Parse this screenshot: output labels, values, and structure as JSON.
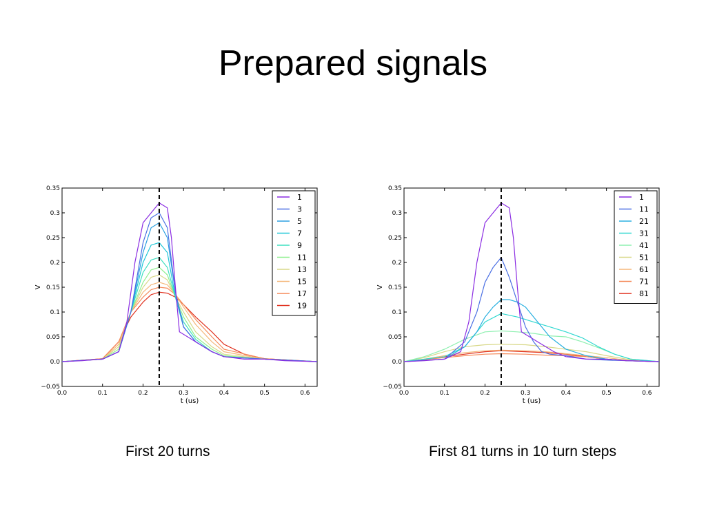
{
  "slide": {
    "title": "Prepared signals",
    "caption_left": "First 20 turns",
    "caption_right": "First 81 turns in 10 turn steps"
  },
  "chart_data": [
    {
      "type": "line",
      "title": "",
      "xlabel": "t (us)",
      "ylabel": "V",
      "xlim": [
        0,
        0.63
      ],
      "ylim": [
        -0.05,
        0.35
      ],
      "xticks": [
        0.0,
        0.1,
        0.2,
        0.3,
        0.4,
        0.5,
        0.6
      ],
      "yticks": [
        -0.05,
        0.0,
        0.05,
        0.1,
        0.15,
        0.2,
        0.25,
        0.3,
        0.35
      ],
      "legend_position": "top-right",
      "vline_x": 0.24,
      "series": [
        {
          "name": "1",
          "color": "#8a2be2",
          "x": [
            0,
            0.05,
            0.1,
            0.14,
            0.16,
            0.18,
            0.2,
            0.22,
            0.24,
            0.26,
            0.27,
            0.28,
            0.29,
            0.31,
            0.33,
            0.35,
            0.37,
            0.4,
            0.45,
            0.5,
            0.55,
            0.63
          ],
          "y": [
            0.0,
            0.002,
            0.005,
            0.02,
            0.08,
            0.2,
            0.28,
            0.3,
            0.32,
            0.31,
            0.25,
            0.15,
            0.06,
            0.05,
            0.04,
            0.03,
            0.02,
            0.01,
            0.005,
            0.005,
            0.002,
            0.0
          ]
        },
        {
          "name": "3",
          "color": "#4a6fe3",
          "x": [
            0,
            0.1,
            0.14,
            0.17,
            0.2,
            0.22,
            0.24,
            0.26,
            0.28,
            0.3,
            0.33,
            0.37,
            0.4,
            0.5,
            0.63
          ],
          "y": [
            0.0,
            0.005,
            0.02,
            0.1,
            0.24,
            0.29,
            0.3,
            0.27,
            0.14,
            0.07,
            0.04,
            0.02,
            0.01,
            0.005,
            0.0
          ]
        },
        {
          "name": "5",
          "color": "#2a9fe0",
          "x": [
            0,
            0.1,
            0.14,
            0.17,
            0.2,
            0.22,
            0.24,
            0.26,
            0.28,
            0.3,
            0.33,
            0.37,
            0.4,
            0.5,
            0.63
          ],
          "y": [
            0.0,
            0.005,
            0.02,
            0.1,
            0.22,
            0.27,
            0.28,
            0.25,
            0.14,
            0.07,
            0.04,
            0.02,
            0.01,
            0.005,
            0.0
          ]
        },
        {
          "name": "7",
          "color": "#1fc7d8",
          "x": [
            0,
            0.1,
            0.14,
            0.17,
            0.2,
            0.22,
            0.24,
            0.26,
            0.28,
            0.3,
            0.33,
            0.37,
            0.4,
            0.5,
            0.63
          ],
          "y": [
            0.0,
            0.005,
            0.02,
            0.1,
            0.2,
            0.235,
            0.24,
            0.22,
            0.13,
            0.07,
            0.04,
            0.02,
            0.01,
            0.005,
            0.0
          ]
        },
        {
          "name": "9",
          "color": "#3fe0c0",
          "x": [
            0,
            0.1,
            0.14,
            0.17,
            0.2,
            0.22,
            0.24,
            0.26,
            0.28,
            0.3,
            0.33,
            0.37,
            0.4,
            0.5,
            0.63
          ],
          "y": [
            0.0,
            0.005,
            0.02,
            0.1,
            0.18,
            0.205,
            0.21,
            0.19,
            0.13,
            0.08,
            0.045,
            0.02,
            0.01,
            0.005,
            0.0
          ]
        },
        {
          "name": "11",
          "color": "#8ef08e",
          "x": [
            0,
            0.1,
            0.14,
            0.17,
            0.2,
            0.22,
            0.24,
            0.26,
            0.28,
            0.3,
            0.33,
            0.37,
            0.4,
            0.5,
            0.63
          ],
          "y": [
            0.0,
            0.005,
            0.025,
            0.1,
            0.16,
            0.185,
            0.19,
            0.175,
            0.13,
            0.09,
            0.05,
            0.025,
            0.012,
            0.005,
            0.0
          ]
        },
        {
          "name": "13",
          "color": "#d8d888",
          "x": [
            0,
            0.1,
            0.14,
            0.17,
            0.2,
            0.22,
            0.24,
            0.26,
            0.28,
            0.3,
            0.33,
            0.37,
            0.4,
            0.5,
            0.63
          ],
          "y": [
            0.0,
            0.005,
            0.03,
            0.1,
            0.15,
            0.17,
            0.175,
            0.165,
            0.13,
            0.1,
            0.06,
            0.03,
            0.015,
            0.005,
            0.0
          ]
        },
        {
          "name": "15",
          "color": "#f5b77a",
          "x": [
            0,
            0.1,
            0.14,
            0.17,
            0.2,
            0.22,
            0.24,
            0.26,
            0.28,
            0.3,
            0.33,
            0.37,
            0.4,
            0.5,
            0.63
          ],
          "y": [
            0.0,
            0.005,
            0.035,
            0.1,
            0.14,
            0.155,
            0.16,
            0.155,
            0.135,
            0.11,
            0.075,
            0.04,
            0.02,
            0.005,
            0.0
          ]
        },
        {
          "name": "17",
          "color": "#f58a5a",
          "x": [
            0,
            0.1,
            0.14,
            0.17,
            0.2,
            0.22,
            0.24,
            0.26,
            0.28,
            0.3,
            0.33,
            0.37,
            0.4,
            0.5,
            0.63
          ],
          "y": [
            0.0,
            0.006,
            0.04,
            0.1,
            0.13,
            0.145,
            0.15,
            0.148,
            0.135,
            0.115,
            0.085,
            0.05,
            0.025,
            0.006,
            0.0
          ]
        },
        {
          "name": "19",
          "color": "#e0301e",
          "x": [
            0,
            0.1,
            0.14,
            0.17,
            0.2,
            0.22,
            0.24,
            0.26,
            0.28,
            0.3,
            0.33,
            0.37,
            0.4,
            0.45,
            0.5,
            0.63
          ],
          "y": [
            0.0,
            0.006,
            0.04,
            0.09,
            0.12,
            0.135,
            0.14,
            0.138,
            0.13,
            0.115,
            0.09,
            0.06,
            0.035,
            0.015,
            0.006,
            0.0
          ]
        }
      ]
    },
    {
      "type": "line",
      "title": "",
      "xlabel": "t (us)",
      "ylabel": "V",
      "xlim": [
        0,
        0.63
      ],
      "ylim": [
        -0.05,
        0.35
      ],
      "xticks": [
        0.0,
        0.1,
        0.2,
        0.3,
        0.4,
        0.5,
        0.6
      ],
      "yticks": [
        -0.05,
        0.0,
        0.05,
        0.1,
        0.15,
        0.2,
        0.25,
        0.3,
        0.35
      ],
      "legend_position": "top-right",
      "vline_x": 0.24,
      "series": [
        {
          "name": "1",
          "color": "#8a2be2",
          "x": [
            0,
            0.05,
            0.1,
            0.14,
            0.16,
            0.18,
            0.2,
            0.22,
            0.24,
            0.26,
            0.27,
            0.28,
            0.29,
            0.31,
            0.33,
            0.35,
            0.37,
            0.4,
            0.45,
            0.5,
            0.55,
            0.63
          ],
          "y": [
            0.0,
            0.002,
            0.005,
            0.02,
            0.08,
            0.2,
            0.28,
            0.3,
            0.32,
            0.31,
            0.25,
            0.15,
            0.06,
            0.05,
            0.04,
            0.03,
            0.02,
            0.01,
            0.005,
            0.005,
            0.002,
            0.0
          ]
        },
        {
          "name": "11",
          "color": "#4a6fe3",
          "x": [
            0,
            0.1,
            0.15,
            0.18,
            0.2,
            0.22,
            0.24,
            0.26,
            0.28,
            0.3,
            0.32,
            0.34,
            0.36,
            0.4,
            0.45,
            0.5,
            0.63
          ],
          "y": [
            0.0,
            0.005,
            0.04,
            0.1,
            0.16,
            0.19,
            0.21,
            0.17,
            0.12,
            0.07,
            0.04,
            0.02,
            0.015,
            0.012,
            0.005,
            0.003,
            0.0
          ]
        },
        {
          "name": "21",
          "color": "#2ab0e0",
          "x": [
            0,
            0.1,
            0.15,
            0.18,
            0.2,
            0.22,
            0.24,
            0.26,
            0.28,
            0.3,
            0.33,
            0.36,
            0.4,
            0.45,
            0.5,
            0.55,
            0.63
          ],
          "y": [
            0.0,
            0.005,
            0.03,
            0.06,
            0.09,
            0.11,
            0.125,
            0.125,
            0.12,
            0.11,
            0.08,
            0.05,
            0.025,
            0.012,
            0.005,
            0.002,
            0.0
          ]
        },
        {
          "name": "31",
          "color": "#30d8d0",
          "x": [
            0,
            0.1,
            0.15,
            0.2,
            0.24,
            0.28,
            0.32,
            0.36,
            0.4,
            0.44,
            0.48,
            0.52,
            0.56,
            0.63
          ],
          "y": [
            0.0,
            0.01,
            0.03,
            0.08,
            0.097,
            0.09,
            0.08,
            0.07,
            0.06,
            0.048,
            0.03,
            0.015,
            0.005,
            0.0
          ]
        },
        {
          "name": "41",
          "color": "#8ef0b0",
          "x": [
            0,
            0.05,
            0.1,
            0.15,
            0.2,
            0.24,
            0.28,
            0.32,
            0.36,
            0.4,
            0.44,
            0.48,
            0.52,
            0.56,
            0.63
          ],
          "y": [
            0.0,
            0.01,
            0.025,
            0.045,
            0.06,
            0.062,
            0.06,
            0.057,
            0.052,
            0.05,
            0.04,
            0.028,
            0.015,
            0.005,
            0.0
          ]
        },
        {
          "name": "51",
          "color": "#d8d888",
          "x": [
            0,
            0.05,
            0.1,
            0.15,
            0.2,
            0.24,
            0.3,
            0.35,
            0.4,
            0.45,
            0.5,
            0.55,
            0.63
          ],
          "y": [
            0.0,
            0.008,
            0.02,
            0.03,
            0.034,
            0.035,
            0.034,
            0.03,
            0.025,
            0.02,
            0.012,
            0.005,
            0.0
          ]
        },
        {
          "name": "61",
          "color": "#f5b77a",
          "x": [
            0,
            0.05,
            0.1,
            0.15,
            0.2,
            0.24,
            0.3,
            0.35,
            0.4,
            0.45,
            0.5,
            0.55,
            0.63
          ],
          "y": [
            0.0,
            0.005,
            0.012,
            0.018,
            0.022,
            0.023,
            0.022,
            0.02,
            0.016,
            0.012,
            0.008,
            0.003,
            0.0
          ]
        },
        {
          "name": "71",
          "color": "#f58a5a",
          "x": [
            0,
            0.05,
            0.1,
            0.15,
            0.2,
            0.24,
            0.3,
            0.35,
            0.4,
            0.45,
            0.5,
            0.55,
            0.63
          ],
          "y": [
            0.0,
            0.004,
            0.008,
            0.012,
            0.015,
            0.016,
            0.015,
            0.013,
            0.012,
            0.01,
            0.005,
            0.002,
            0.0
          ]
        },
        {
          "name": "81",
          "color": "#e0301e",
          "x": [
            0,
            0.05,
            0.1,
            0.15,
            0.2,
            0.24,
            0.3,
            0.35,
            0.4,
            0.45,
            0.5,
            0.55,
            0.63
          ],
          "y": [
            0.0,
            0.004,
            0.01,
            0.015,
            0.02,
            0.022,
            0.02,
            0.018,
            0.015,
            0.01,
            0.005,
            0.002,
            0.0
          ]
        }
      ]
    }
  ]
}
